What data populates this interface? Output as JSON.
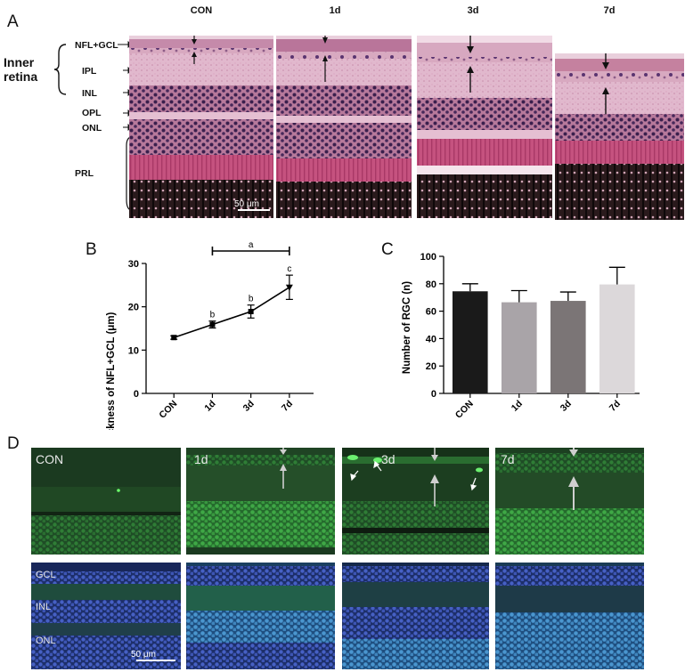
{
  "panel_a": {
    "letter": "A",
    "group_label_line1": "Inner",
    "group_label_line2": "retina",
    "layers": [
      "NFL+GCL",
      "IPL",
      "INL",
      "OPL",
      "ONL",
      "PRL"
    ],
    "columns": [
      "CON",
      "1d",
      "3d",
      "7d"
    ],
    "scale_bar": "50 μm"
  },
  "panel_b": {
    "letter": "B",
    "sig_bar_label": "a"
  },
  "panel_c": {
    "letter": "C"
  },
  "panel_d": {
    "letter": "D",
    "top_labels": [
      "CON",
      "1d",
      "3d",
      "7d"
    ],
    "bottom_layers": [
      "GCL",
      "INL",
      "ONL"
    ],
    "scale_bar": "50 μm"
  },
  "chart_data": [
    {
      "type": "line",
      "ylabel": "Thickness of NFL+GCL (μm)",
      "categories": [
        "CON",
        "1d",
        "3d",
        "7d"
      ],
      "values": [
        12.9,
        15.9,
        18.9,
        24.5
      ],
      "errors": [
        0.4,
        0.8,
        1.5,
        2.8
      ],
      "annotations": [
        "",
        "b",
        "b",
        "c"
      ],
      "ylim": [
        0,
        30
      ],
      "yticks": [
        0,
        10,
        20,
        30
      ],
      "color": "#000000"
    },
    {
      "type": "bar",
      "ylabel": "Number of RGC (n)",
      "categories": [
        "CON",
        "1d",
        "3d",
        "7d"
      ],
      "values": [
        74.5,
        66.5,
        67.5,
        79.5
      ],
      "errors": [
        5.5,
        8.5,
        6.5,
        12.5
      ],
      "colors": [
        "#1a1a1a",
        "#a9a4a8",
        "#7b7576",
        "#dcd8da"
      ],
      "ylim": [
        0,
        100
      ],
      "yticks": [
        0,
        20,
        40,
        60,
        80,
        100
      ]
    }
  ]
}
